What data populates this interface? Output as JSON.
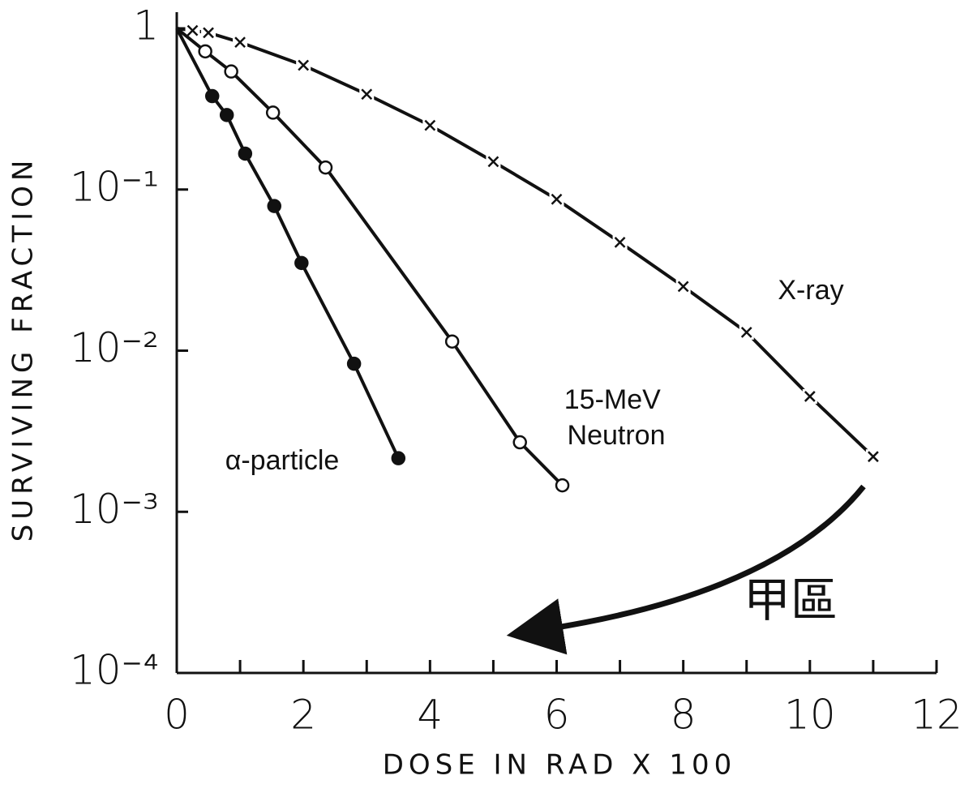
{
  "chart_data": {
    "type": "line",
    "xlabel": "DOSE IN RAD  X 100",
    "ylabel": "SURVIVING FRACTION",
    "annotation": "甲區",
    "xlim": [
      0,
      12
    ],
    "xticks": [
      0,
      2,
      4,
      6,
      8,
      10,
      12
    ],
    "xticks_minor": [
      1,
      3,
      5,
      7,
      9,
      11
    ],
    "ylim": [
      0.0001,
      1
    ],
    "ylog": true,
    "yticks": [
      1,
      {
        "value": 0.1,
        "label": "10⁻¹"
      },
      {
        "value": 0.01,
        "label": "10⁻²"
      },
      {
        "value": 0.001,
        "label": "10⁻³"
      },
      {
        "value": 0.0001,
        "label": "10⁻⁴"
      }
    ],
    "series": [
      {
        "name": "X-ray",
        "color": "#111111",
        "marker": "x",
        "x": [
          0.25,
          0.5,
          1,
          2,
          3,
          4,
          5,
          6,
          7,
          8,
          9,
          10,
          11
        ],
        "values": [
          0.97,
          0.94,
          0.82,
          0.59,
          0.39,
          0.25,
          0.149,
          0.087,
          0.047,
          0.025,
          0.013,
          0.0052,
          0.0022
        ]
      },
      {
        "name": "15-MeV Neutron",
        "color": "#111111",
        "marker": "open-circle",
        "x": [
          0.45,
          0.86,
          1.52,
          2.35,
          4.35,
          5.42,
          6.09
        ],
        "values": [
          0.72,
          0.54,
          0.3,
          0.137,
          0.0114,
          0.0027,
          0.00146
        ]
      },
      {
        "name": "α-particle",
        "color": "#111111",
        "marker": "filled-circle",
        "x": [
          0.56,
          0.79,
          1.08,
          1.54,
          1.97,
          2.8,
          3.5
        ],
        "values": [
          0.38,
          0.29,
          0.167,
          0.079,
          0.035,
          0.0083,
          0.00215
        ]
      }
    ]
  }
}
